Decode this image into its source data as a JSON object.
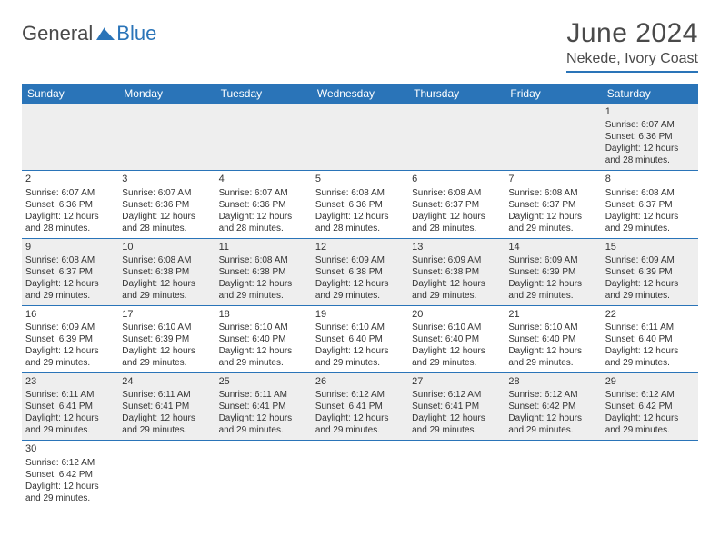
{
  "logo": {
    "part1": "General",
    "part2": "Blue"
  },
  "title": "June 2024",
  "location": "Nekede, Ivory Coast",
  "colors": {
    "header_bg": "#2a74b8",
    "header_text": "#ffffff",
    "row_odd_bg": "#eeeeee",
    "row_even_bg": "#ffffff",
    "border": "#2a74b8",
    "title_color": "#4a4a4a"
  },
  "days": [
    "Sunday",
    "Monday",
    "Tuesday",
    "Wednesday",
    "Thursday",
    "Friday",
    "Saturday"
  ],
  "weeks": [
    [
      null,
      null,
      null,
      null,
      null,
      null,
      {
        "n": "1",
        "sr": "Sunrise: 6:07 AM",
        "ss": "Sunset: 6:36 PM",
        "d1": "Daylight: 12 hours",
        "d2": "and 28 minutes."
      }
    ],
    [
      {
        "n": "2",
        "sr": "Sunrise: 6:07 AM",
        "ss": "Sunset: 6:36 PM",
        "d1": "Daylight: 12 hours",
        "d2": "and 28 minutes."
      },
      {
        "n": "3",
        "sr": "Sunrise: 6:07 AM",
        "ss": "Sunset: 6:36 PM",
        "d1": "Daylight: 12 hours",
        "d2": "and 28 minutes."
      },
      {
        "n": "4",
        "sr": "Sunrise: 6:07 AM",
        "ss": "Sunset: 6:36 PM",
        "d1": "Daylight: 12 hours",
        "d2": "and 28 minutes."
      },
      {
        "n": "5",
        "sr": "Sunrise: 6:08 AM",
        "ss": "Sunset: 6:36 PM",
        "d1": "Daylight: 12 hours",
        "d2": "and 28 minutes."
      },
      {
        "n": "6",
        "sr": "Sunrise: 6:08 AM",
        "ss": "Sunset: 6:37 PM",
        "d1": "Daylight: 12 hours",
        "d2": "and 28 minutes."
      },
      {
        "n": "7",
        "sr": "Sunrise: 6:08 AM",
        "ss": "Sunset: 6:37 PM",
        "d1": "Daylight: 12 hours",
        "d2": "and 29 minutes."
      },
      {
        "n": "8",
        "sr": "Sunrise: 6:08 AM",
        "ss": "Sunset: 6:37 PM",
        "d1": "Daylight: 12 hours",
        "d2": "and 29 minutes."
      }
    ],
    [
      {
        "n": "9",
        "sr": "Sunrise: 6:08 AM",
        "ss": "Sunset: 6:37 PM",
        "d1": "Daylight: 12 hours",
        "d2": "and 29 minutes."
      },
      {
        "n": "10",
        "sr": "Sunrise: 6:08 AM",
        "ss": "Sunset: 6:38 PM",
        "d1": "Daylight: 12 hours",
        "d2": "and 29 minutes."
      },
      {
        "n": "11",
        "sr": "Sunrise: 6:08 AM",
        "ss": "Sunset: 6:38 PM",
        "d1": "Daylight: 12 hours",
        "d2": "and 29 minutes."
      },
      {
        "n": "12",
        "sr": "Sunrise: 6:09 AM",
        "ss": "Sunset: 6:38 PM",
        "d1": "Daylight: 12 hours",
        "d2": "and 29 minutes."
      },
      {
        "n": "13",
        "sr": "Sunrise: 6:09 AM",
        "ss": "Sunset: 6:38 PM",
        "d1": "Daylight: 12 hours",
        "d2": "and 29 minutes."
      },
      {
        "n": "14",
        "sr": "Sunrise: 6:09 AM",
        "ss": "Sunset: 6:39 PM",
        "d1": "Daylight: 12 hours",
        "d2": "and 29 minutes."
      },
      {
        "n": "15",
        "sr": "Sunrise: 6:09 AM",
        "ss": "Sunset: 6:39 PM",
        "d1": "Daylight: 12 hours",
        "d2": "and 29 minutes."
      }
    ],
    [
      {
        "n": "16",
        "sr": "Sunrise: 6:09 AM",
        "ss": "Sunset: 6:39 PM",
        "d1": "Daylight: 12 hours",
        "d2": "and 29 minutes."
      },
      {
        "n": "17",
        "sr": "Sunrise: 6:10 AM",
        "ss": "Sunset: 6:39 PM",
        "d1": "Daylight: 12 hours",
        "d2": "and 29 minutes."
      },
      {
        "n": "18",
        "sr": "Sunrise: 6:10 AM",
        "ss": "Sunset: 6:40 PM",
        "d1": "Daylight: 12 hours",
        "d2": "and 29 minutes."
      },
      {
        "n": "19",
        "sr": "Sunrise: 6:10 AM",
        "ss": "Sunset: 6:40 PM",
        "d1": "Daylight: 12 hours",
        "d2": "and 29 minutes."
      },
      {
        "n": "20",
        "sr": "Sunrise: 6:10 AM",
        "ss": "Sunset: 6:40 PM",
        "d1": "Daylight: 12 hours",
        "d2": "and 29 minutes."
      },
      {
        "n": "21",
        "sr": "Sunrise: 6:10 AM",
        "ss": "Sunset: 6:40 PM",
        "d1": "Daylight: 12 hours",
        "d2": "and 29 minutes."
      },
      {
        "n": "22",
        "sr": "Sunrise: 6:11 AM",
        "ss": "Sunset: 6:40 PM",
        "d1": "Daylight: 12 hours",
        "d2": "and 29 minutes."
      }
    ],
    [
      {
        "n": "23",
        "sr": "Sunrise: 6:11 AM",
        "ss": "Sunset: 6:41 PM",
        "d1": "Daylight: 12 hours",
        "d2": "and 29 minutes."
      },
      {
        "n": "24",
        "sr": "Sunrise: 6:11 AM",
        "ss": "Sunset: 6:41 PM",
        "d1": "Daylight: 12 hours",
        "d2": "and 29 minutes."
      },
      {
        "n": "25",
        "sr": "Sunrise: 6:11 AM",
        "ss": "Sunset: 6:41 PM",
        "d1": "Daylight: 12 hours",
        "d2": "and 29 minutes."
      },
      {
        "n": "26",
        "sr": "Sunrise: 6:12 AM",
        "ss": "Sunset: 6:41 PM",
        "d1": "Daylight: 12 hours",
        "d2": "and 29 minutes."
      },
      {
        "n": "27",
        "sr": "Sunrise: 6:12 AM",
        "ss": "Sunset: 6:41 PM",
        "d1": "Daylight: 12 hours",
        "d2": "and 29 minutes."
      },
      {
        "n": "28",
        "sr": "Sunrise: 6:12 AM",
        "ss": "Sunset: 6:42 PM",
        "d1": "Daylight: 12 hours",
        "d2": "and 29 minutes."
      },
      {
        "n": "29",
        "sr": "Sunrise: 6:12 AM",
        "ss": "Sunset: 6:42 PM",
        "d1": "Daylight: 12 hours",
        "d2": "and 29 minutes."
      }
    ],
    [
      {
        "n": "30",
        "sr": "Sunrise: 6:12 AM",
        "ss": "Sunset: 6:42 PM",
        "d1": "Daylight: 12 hours",
        "d2": "and 29 minutes."
      },
      null,
      null,
      null,
      null,
      null,
      null
    ]
  ]
}
